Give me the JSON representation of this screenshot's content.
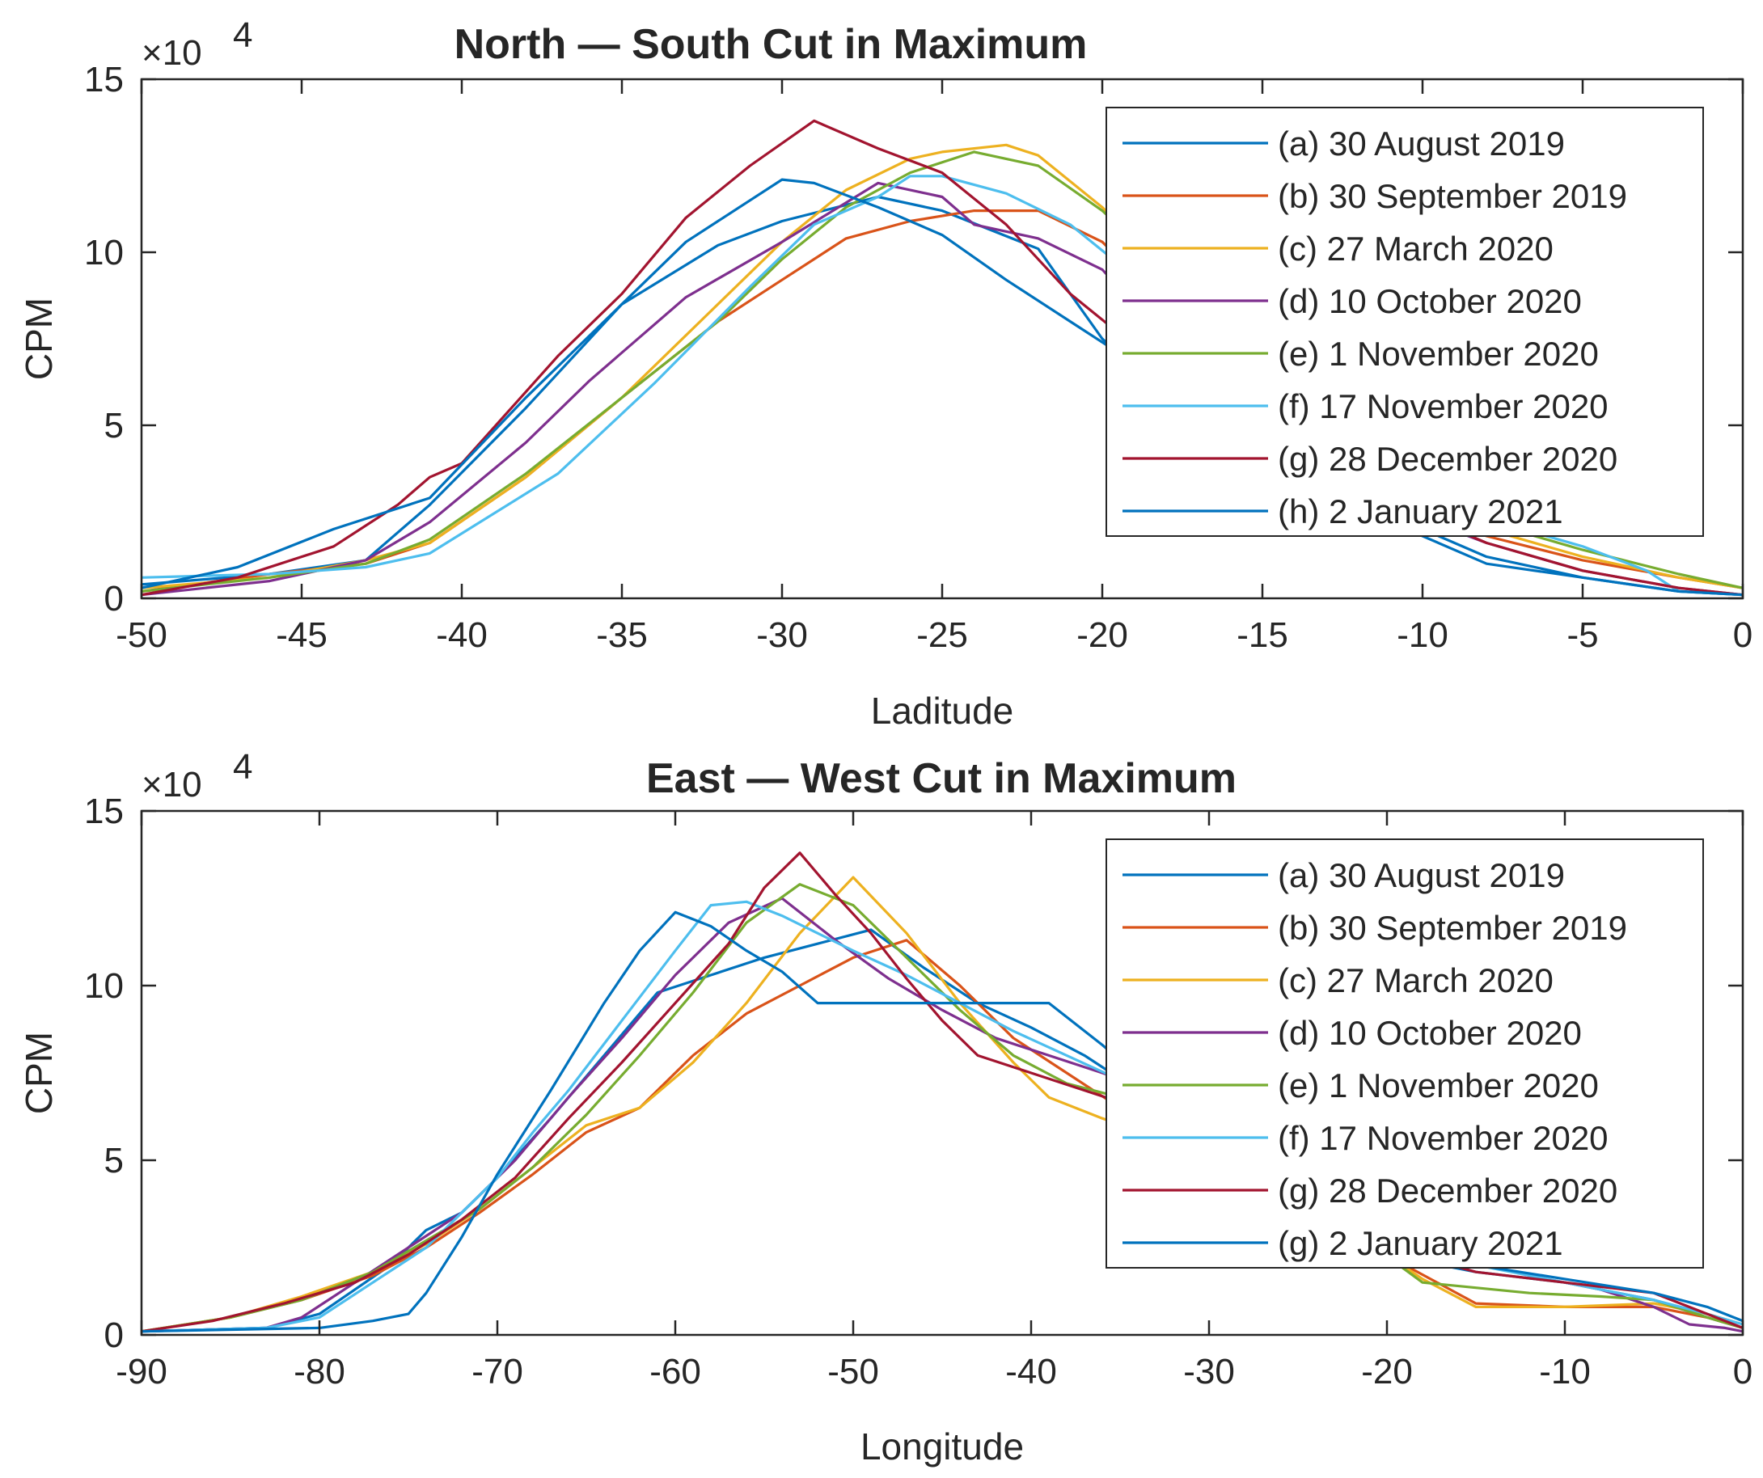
{
  "chart_data": [
    {
      "type": "line",
      "title": "North — South Cut in Maximum",
      "xlabel": "Laditude",
      "ylabel": "CPM",
      "exponent_base": "×10",
      "exponent_power": "4",
      "xlim": [
        -50,
        0
      ],
      "ylim": [
        0,
        15
      ],
      "xticks": [
        -50,
        -45,
        -40,
        -35,
        -30,
        -25,
        -20,
        -15,
        -10,
        -5,
        0
      ],
      "xtick_labels": [
        "-50",
        "-45",
        "-40",
        "-35",
        "-30",
        "-25",
        "-20",
        "-15",
        "-10",
        "-5",
        "0"
      ],
      "yticks": [
        0,
        5,
        10,
        15
      ],
      "ytick_labels": [
        "0",
        "5",
        "10",
        "15"
      ],
      "legend_position": "top-right",
      "series": [
        {
          "name": "(a) 30 August 2019",
          "color": "#0072BD",
          "x": [
            -50,
            -46,
            -43,
            -41,
            -38,
            -35,
            -32,
            -30,
            -27,
            -25,
            -22,
            -20,
            -17,
            -14,
            -12,
            -10,
            -8,
            -5,
            -2,
            0
          ],
          "y": [
            0.4,
            0.7,
            1.1,
            2.7,
            5.5,
            8.5,
            10.2,
            10.9,
            11.6,
            11.2,
            10.1,
            7.5,
            5.0,
            3.5,
            2.5,
            1.8,
            1.0,
            0.6,
            0.2,
            0.1
          ]
        },
        {
          "name": "(b) 30 September 2019",
          "color": "#D95319",
          "x": [
            -50,
            -46,
            -43,
            -41,
            -38,
            -35,
            -32,
            -30,
            -28,
            -26,
            -24,
            -22,
            -20,
            -18,
            -15,
            -12,
            -10,
            -8,
            -5,
            -2,
            0
          ],
          "y": [
            0.2,
            0.7,
            1.0,
            1.6,
            3.5,
            5.8,
            8.0,
            9.2,
            10.4,
            10.9,
            11.2,
            11.2,
            10.3,
            8.5,
            6.0,
            3.8,
            2.5,
            1.8,
            1.1,
            0.6,
            0.3
          ]
        },
        {
          "name": "(c) 27 March 2020",
          "color": "#EDB120",
          "x": [
            -50,
            -46,
            -43,
            -41,
            -38,
            -35,
            -32,
            -30,
            -28,
            -26,
            -25,
            -23,
            -22,
            -20,
            -18,
            -15,
            -12,
            -10,
            -8,
            -5,
            -2,
            0
          ],
          "y": [
            0.3,
            0.6,
            1.1,
            1.6,
            3.5,
            5.8,
            8.5,
            10.3,
            11.8,
            12.7,
            12.9,
            13.1,
            12.8,
            11.3,
            9.5,
            6.5,
            4.0,
            2.8,
            2.0,
            1.2,
            0.6,
            0.3
          ]
        },
        {
          "name": "(d) 10 October 2020",
          "color": "#7E2F8E",
          "x": [
            -50,
            -46,
            -43,
            -41,
            -38,
            -36,
            -33,
            -30,
            -27,
            -25,
            -24,
            -22,
            -20,
            -18,
            -15,
            -12,
            -10,
            -8,
            -5,
            -2,
            0
          ],
          "y": [
            0.1,
            0.5,
            1.1,
            2.2,
            4.5,
            6.3,
            8.7,
            10.3,
            12.0,
            11.6,
            10.8,
            10.4,
            9.5,
            7.5,
            5.0,
            3.2,
            2.3,
            1.6,
            0.8,
            0.3,
            0.1
          ]
        },
        {
          "name": "(e) 1 November 2020",
          "color": "#77AC30",
          "x": [
            -50,
            -46,
            -43,
            -41,
            -38,
            -35,
            -32,
            -30,
            -28,
            -26,
            -24,
            -22,
            -20,
            -18,
            -15,
            -12,
            -10,
            -8,
            -5,
            -2,
            0
          ],
          "y": [
            0.2,
            0.6,
            1.0,
            1.7,
            3.6,
            5.8,
            8.0,
            9.8,
            11.3,
            12.3,
            12.9,
            12.5,
            11.2,
            9.5,
            6.8,
            4.3,
            3.0,
            2.2,
            1.4,
            0.7,
            0.3
          ]
        },
        {
          "name": "(f) 17 November 2020",
          "color": "#4DBEEE",
          "x": [
            -50,
            -46,
            -43,
            -41,
            -37,
            -34,
            -31,
            -29,
            -27,
            -26,
            -25,
            -23,
            -21,
            -19,
            -17,
            -15,
            -12,
            -10,
            -8,
            -5,
            -3,
            -2,
            0
          ],
          "y": [
            0.6,
            0.7,
            0.9,
            1.3,
            3.6,
            6.2,
            9.0,
            10.8,
            11.6,
            12.2,
            12.2,
            11.7,
            10.8,
            9.3,
            8.0,
            6.5,
            4.5,
            3.2,
            2.3,
            1.5,
            0.8,
            0.2,
            0.1
          ]
        },
        {
          "name": "(g) 28 December 2020",
          "color": "#A2142F",
          "x": [
            -50,
            -47,
            -44,
            -42,
            -41,
            -40,
            -37,
            -35,
            -33,
            -31,
            -29,
            -27,
            -25,
            -23,
            -21,
            -19,
            -17,
            -15,
            -12,
            -10,
            -8,
            -5,
            -2,
            0
          ],
          "y": [
            0.1,
            0.6,
            1.5,
            2.7,
            3.5,
            3.9,
            7.0,
            8.8,
            11.0,
            12.5,
            13.8,
            13.0,
            12.3,
            10.8,
            8.8,
            7.3,
            6.3,
            5.2,
            3.5,
            2.4,
            1.6,
            0.8,
            0.3,
            0.1
          ]
        },
        {
          "name": "(h) 2 January 2021",
          "color": "#0072BD",
          "x": [
            -50,
            -47,
            -44,
            -41,
            -38,
            -35,
            -33,
            -31,
            -30,
            -29,
            -27,
            -25,
            -23,
            -21,
            -19,
            -17,
            -15,
            -12,
            -10,
            -8,
            -5,
            -2,
            0
          ],
          "y": [
            0.3,
            0.9,
            2.0,
            2.9,
            5.8,
            8.5,
            10.3,
            11.5,
            12.1,
            12.0,
            11.3,
            10.5,
            9.2,
            8.0,
            6.8,
            5.5,
            4.3,
            3.0,
            2.0,
            1.2,
            0.6,
            0.2,
            0.1
          ]
        }
      ]
    },
    {
      "type": "line",
      "title": "East — West Cut in Maximum",
      "xlabel": "Longitude",
      "ylabel": "CPM",
      "exponent_base": "×10",
      "exponent_power": "4",
      "xlim": [
        -90,
        0
      ],
      "ylim": [
        0,
        15
      ],
      "xticks": [
        -90,
        -80,
        -70,
        -60,
        -50,
        -40,
        -30,
        -20,
        -10,
        0
      ],
      "xtick_labels": [
        "-90",
        "-80",
        "-70",
        "-60",
        "-50",
        "-40",
        "-30",
        "-20",
        "-10",
        "0"
      ],
      "yticks": [
        0,
        5,
        10,
        15
      ],
      "ytick_labels": [
        "0",
        "5",
        "10",
        "15"
      ],
      "legend_position": "top-right",
      "series": [
        {
          "name": "(a) 30 August 2019",
          "color": "#0072BD",
          "x": [
            -90,
            -83,
            -80,
            -76,
            -74,
            -72,
            -70,
            -67,
            -64,
            -61,
            -58,
            -55,
            -52,
            -49,
            -46,
            -43,
            -40,
            -37,
            -34,
            -30,
            -25,
            -20,
            -15,
            -10,
            -5,
            -2,
            0
          ],
          "y": [
            0.1,
            0.2,
            0.6,
            2.0,
            3.0,
            3.5,
            4.5,
            6.2,
            8.0,
            9.8,
            10.3,
            10.8,
            11.2,
            11.6,
            10.5,
            9.5,
            8.8,
            8.0,
            7.0,
            5.5,
            3.5,
            2.3,
            1.8,
            1.5,
            1.0,
            0.5,
            0.2
          ]
        },
        {
          "name": "(b) 30 September 2019",
          "color": "#D95319",
          "x": [
            -90,
            -85,
            -81,
            -77,
            -74,
            -71,
            -68,
            -65,
            -62,
            -59,
            -56,
            -53,
            -50,
            -47,
            -44,
            -41,
            -38,
            -35,
            -31,
            -27,
            -23,
            -19,
            -15,
            -10,
            -5,
            -2,
            0
          ],
          "y": [
            0.1,
            0.5,
            1.0,
            1.7,
            2.5,
            3.5,
            4.6,
            5.8,
            6.5,
            8.0,
            9.2,
            10.0,
            10.8,
            11.3,
            10.0,
            8.5,
            7.5,
            6.5,
            5.5,
            4.5,
            3.3,
            2.0,
            0.9,
            0.8,
            0.8,
            0.5,
            0.2
          ]
        },
        {
          "name": "(c) 27 March 2020",
          "color": "#EDB120",
          "x": [
            -90,
            -85,
            -81,
            -77,
            -74,
            -71,
            -68,
            -65,
            -62,
            -59,
            -56,
            -53,
            -50,
            -47,
            -44,
            -41,
            -39,
            -36,
            -32,
            -27,
            -22,
            -18,
            -15,
            -10,
            -5,
            -2,
            0
          ],
          "y": [
            0.1,
            0.5,
            1.1,
            1.8,
            2.6,
            3.6,
            4.8,
            6.0,
            6.5,
            7.8,
            9.5,
            11.5,
            13.1,
            11.5,
            9.5,
            7.8,
            6.8,
            6.2,
            5.5,
            4.5,
            3.0,
            1.6,
            0.8,
            0.8,
            0.9,
            0.6,
            0.3
          ]
        },
        {
          "name": "(d) 10 October 2020",
          "color": "#7E2F8E",
          "x": [
            -90,
            -83,
            -81,
            -78,
            -75,
            -72,
            -69,
            -66,
            -63,
            -60,
            -57,
            -54,
            -51,
            -48,
            -45,
            -42,
            -39,
            -36,
            -32,
            -27,
            -22,
            -17,
            -12,
            -8,
            -5,
            -3,
            -1,
            0
          ],
          "y": [
            0.1,
            0.2,
            0.5,
            1.5,
            2.5,
            3.5,
            5.0,
            6.8,
            8.5,
            10.3,
            11.8,
            12.5,
            11.3,
            10.2,
            9.3,
            8.5,
            8.0,
            7.5,
            6.8,
            5.5,
            3.8,
            2.3,
            1.7,
            1.3,
            0.8,
            0.3,
            0.2,
            0.1
          ]
        },
        {
          "name": "(e) 1 November 2020",
          "color": "#77AC30",
          "x": [
            -90,
            -85,
            -81,
            -77,
            -74,
            -71,
            -68,
            -65,
            -62,
            -59,
            -56,
            -53,
            -50,
            -47,
            -44,
            -41,
            -38,
            -35,
            -31,
            -27,
            -22,
            -18,
            -12,
            -8,
            -5,
            -2,
            0
          ],
          "y": [
            0.1,
            0.5,
            1.0,
            1.8,
            2.7,
            3.6,
            4.8,
            6.3,
            8.0,
            9.8,
            11.8,
            12.9,
            12.3,
            10.8,
            9.3,
            8.0,
            7.2,
            6.8,
            6.0,
            4.8,
            3.0,
            1.5,
            1.2,
            1.1,
            1.0,
            0.5,
            0.2
          ]
        },
        {
          "name": "(f) 17 November 2020",
          "color": "#4DBEEE",
          "x": [
            -90,
            -83,
            -80,
            -77,
            -74,
            -72,
            -70,
            -68,
            -66,
            -63,
            -60,
            -58,
            -56,
            -54,
            -52,
            -50,
            -47,
            -44,
            -41,
            -38,
            -35,
            -30,
            -25,
            -20,
            -15,
            -10,
            -5,
            -2,
            0
          ],
          "y": [
            0.1,
            0.2,
            0.5,
            1.5,
            2.5,
            3.5,
            4.5,
            5.8,
            7.0,
            9.0,
            11.0,
            12.3,
            12.4,
            12.0,
            11.5,
            11.0,
            10.3,
            9.5,
            8.7,
            8.0,
            7.3,
            5.8,
            4.2,
            2.8,
            2.0,
            1.5,
            1.0,
            0.6,
            0.3
          ]
        },
        {
          "name": "(g) 28 December 2020",
          "color": "#A2142F",
          "x": [
            -90,
            -86,
            -82,
            -78,
            -75,
            -72,
            -69,
            -66,
            -63,
            -60,
            -57,
            -55,
            -53,
            -51,
            -49,
            -47,
            -45,
            -43,
            -40,
            -37,
            -34,
            -30,
            -25,
            -20,
            -15,
            -10,
            -5,
            -2,
            0
          ],
          "y": [
            0.1,
            0.4,
            0.9,
            1.5,
            2.3,
            3.3,
            4.5,
            6.2,
            7.8,
            9.5,
            11.2,
            12.8,
            13.8,
            12.6,
            11.5,
            10.2,
            9.0,
            8.0,
            7.5,
            7.0,
            6.5,
            5.5,
            4.0,
            2.5,
            1.8,
            1.5,
            1.2,
            0.6,
            0.2
          ]
        },
        {
          "name": "(g) 2 January 2021",
          "color": "#0072BD",
          "x": [
            -90,
            -80,
            -77,
            -75,
            -74,
            -72,
            -70,
            -67,
            -64,
            -62,
            -60,
            -58,
            -56,
            -54,
            -52,
            -50,
            -45,
            -42,
            -39,
            -36,
            -33,
            -30,
            -25,
            -20,
            -15,
            -10,
            -5,
            -2,
            0
          ],
          "y": [
            0.1,
            0.2,
            0.4,
            0.6,
            1.2,
            2.8,
            4.6,
            7.0,
            9.5,
            11.0,
            12.1,
            11.7,
            11.0,
            10.4,
            9.5,
            9.5,
            9.5,
            9.5,
            9.5,
            8.3,
            7.0,
            5.8,
            4.0,
            2.8,
            2.0,
            1.6,
            1.2,
            0.8,
            0.4
          ]
        }
      ]
    }
  ]
}
